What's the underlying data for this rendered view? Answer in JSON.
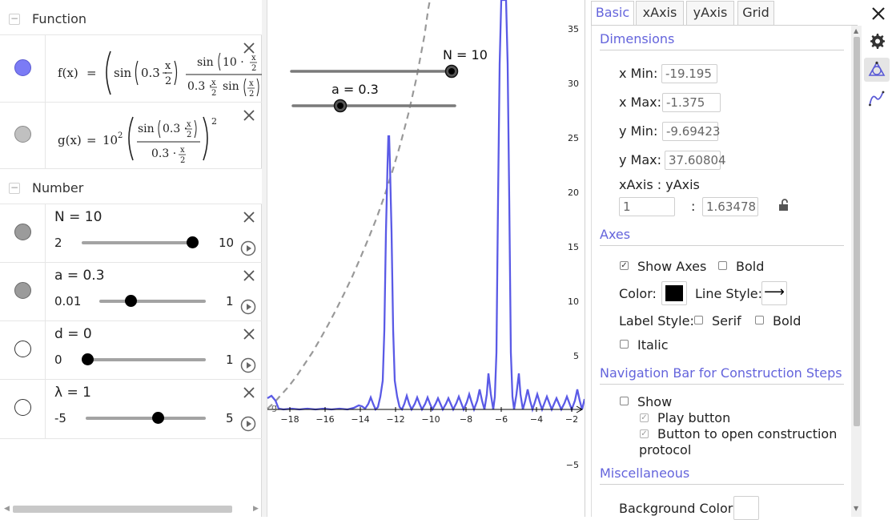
{
  "algebra": {
    "groups": [
      {
        "title": "Function",
        "toggle": "−"
      },
      {
        "title": "Number",
        "toggle": "−"
      }
    ],
    "functions": [
      {
        "name": "f(x)",
        "equals": "=",
        "sin": "sin",
        "a_expr": "0.3 ·",
        "x_over_2_num": "x",
        "x_over_2_den": "2",
        "numer_sin": "sin",
        "numer_arg": "10 ·",
        "denom": "0.3 ·",
        "denom_sin": "sin",
        "color": "#7b7bf5"
      },
      {
        "name": "g(x)",
        "equals": "=",
        "coef_base": "10",
        "coef_exp": "2",
        "sin": "sin",
        "a_expr": "0.3 ·",
        "x_num": "x",
        "x_den": "2",
        "denom": "0.3 ·",
        "power": "2",
        "color": "#c0c0c0"
      }
    ],
    "numbers": [
      {
        "label": "N = 10",
        "min": "2",
        "max": "10",
        "value": 10,
        "range": [
          2,
          10
        ],
        "marble": "#9b9b9b"
      },
      {
        "label": "a = 0.3",
        "min": "0.01",
        "max": "1",
        "value": 0.3,
        "range": [
          0.01,
          1
        ],
        "marble": "#9b9b9b"
      },
      {
        "label": "d = 0",
        "min": "0",
        "max": "1",
        "value": 0,
        "range": [
          0,
          1
        ],
        "marble": "#ffffff"
      },
      {
        "label": "λ = 1",
        "min": "-5",
        "max": "5",
        "value": 1,
        "range": [
          -5,
          5
        ],
        "marble": "#ffffff"
      }
    ]
  },
  "graphics": {
    "slider_N_label": "N = 10",
    "slider_a_label": "a = 0.3",
    "origin_label": "g",
    "x_ticks": [
      "−18",
      "−16",
      "−14",
      "−12",
      "−10",
      "−8",
      "−6",
      "−4",
      "−2"
    ],
    "y_ticks": [
      "35",
      "30",
      "25",
      "20",
      "15",
      "10",
      "5",
      "−5"
    ],
    "curve_color": "#5a5ae6",
    "dashed_color": "#999999"
  },
  "properties": {
    "tabs": [
      "Basic",
      "xAxis",
      "yAxis",
      "Grid"
    ],
    "active_tab": "Basic",
    "dimensions": {
      "title": "Dimensions",
      "x_min_label": "x Min:",
      "x_min": "-19.195",
      "x_max_label": "x Max:",
      "x_max": "-1.375",
      "y_min_label": "y Min:",
      "y_min": "-9.69423",
      "y_max_label": "y Max:",
      "y_max": "37.60804",
      "ratio_label": "xAxis : yAxis",
      "ratio_x": "1",
      "ratio_sep": ":",
      "ratio_y": "1.63478"
    },
    "axes": {
      "title": "Axes",
      "show_axes": "Show Axes",
      "show_axes_checked": true,
      "bold": "Bold",
      "bold_checked": false,
      "color_label": "Color:",
      "color": "#000000",
      "line_style_label": "Line Style:",
      "line_style_arrow": "⟶",
      "label_style": "Label Style:",
      "serif": "Serif",
      "label_bold": "Bold",
      "italic": "Italic"
    },
    "navigation": {
      "title": "Navigation Bar for Construction Steps",
      "show": "Show",
      "play_button": "Play button",
      "open_protocol_1": "Button to open construction",
      "open_protocol_2": "protocol"
    },
    "misc": {
      "title": "Miscellaneous",
      "background_color": "Background Color:"
    }
  }
}
